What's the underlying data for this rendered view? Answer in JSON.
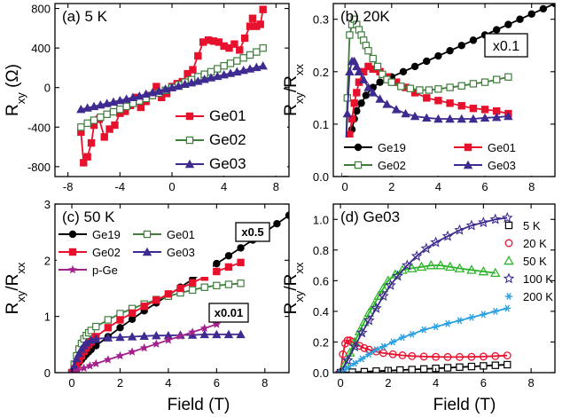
{
  "figure": {
    "xlabel": "Field (T)",
    "xlabel_left": "Field (T)",
    "xlabel_right": "Field (T)"
  },
  "chart_data": [
    {
      "id": "a",
      "type": "line",
      "title": "(a) 5 K",
      "ylabel_main": "R",
      "ylabel_sub": "xy",
      "ylabel_unit": " (Ω)",
      "xlim": [
        -9,
        9
      ],
      "ylim": [
        -900,
        850
      ],
      "xticks": [
        -8,
        -4,
        0,
        4,
        8
      ],
      "yticks": [
        -800,
        -400,
        0,
        400,
        800
      ],
      "legend_position": "bottom-right",
      "series": [
        {
          "name": "Ge01",
          "color": "#e8112d",
          "marker": "square-filled",
          "x": [
            -7,
            -6.8,
            -6.5,
            -6.2,
            -6,
            -5.6,
            -5.2,
            -4.8,
            -4.4,
            -4,
            -3.6,
            -3.2,
            -2.8,
            -2.4,
            -2,
            -1.6,
            -1.2,
            -0.8,
            -0.4,
            0,
            0.4,
            0.8,
            1.2,
            1.6,
            2,
            2.4,
            2.8,
            3.2,
            3.6,
            4,
            4.4,
            4.8,
            5.2,
            5.6,
            6,
            6.2,
            6.5,
            6.8,
            7
          ],
          "y": [
            -450,
            -760,
            -700,
            -560,
            -380,
            -320,
            -500,
            -420,
            -380,
            -260,
            -240,
            -180,
            -100,
            -200,
            -140,
            -80,
            10,
            -100,
            -60,
            10,
            40,
            60,
            140,
            180,
            320,
            460,
            480,
            470,
            460,
            420,
            400,
            440,
            380,
            500,
            620,
            700,
            620,
            640,
            790
          ]
        },
        {
          "name": "Ge02",
          "color": "#3e7d3b",
          "marker": "square-open",
          "x": [
            -7,
            -6.5,
            -6,
            -5.5,
            -5,
            -4.5,
            -4,
            -3.5,
            -3,
            -2.5,
            -2,
            -1.5,
            -1,
            -0.5,
            0,
            0.5,
            1,
            1.5,
            2,
            2.5,
            3,
            3.5,
            4,
            4.5,
            5,
            5.5,
            6,
            6.5,
            7
          ],
          "y": [
            -400,
            -360,
            -330,
            -300,
            -270,
            -245,
            -220,
            -190,
            -160,
            -135,
            -110,
            -80,
            -55,
            -28,
            0,
            28,
            55,
            80,
            110,
            135,
            160,
            190,
            220,
            245,
            270,
            300,
            330,
            360,
            400
          ]
        },
        {
          "name": "Ge03",
          "color": "#3f2a8f",
          "marker": "triangle-filled",
          "x": [
            -7,
            -6.5,
            -6,
            -5.5,
            -5,
            -4.5,
            -4,
            -3.5,
            -3,
            -2.5,
            -2,
            -1.5,
            -1,
            -0.5,
            0,
            0.5,
            1,
            1.5,
            2,
            2.5,
            3,
            3.5,
            4,
            4.5,
            5,
            5.5,
            6,
            6.5,
            7
          ],
          "y": [
            -220,
            -205,
            -190,
            -175,
            -160,
            -145,
            -130,
            -115,
            -100,
            -85,
            -65,
            -50,
            -35,
            -15,
            0,
            15,
            35,
            50,
            65,
            85,
            100,
            115,
            130,
            145,
            160,
            175,
            190,
            205,
            220
          ]
        }
      ]
    },
    {
      "id": "b",
      "type": "line",
      "title": "(b) 20K",
      "ylabel_main": "R",
      "ylabel_sub": "xy",
      "ylabel_mid": "/R",
      "ylabel_sub2": "xx",
      "xlim": [
        -0.5,
        9
      ],
      "ylim": [
        0,
        0.33
      ],
      "xticks": [
        0,
        2,
        4,
        6,
        8
      ],
      "yticks": [
        0.0,
        0.1,
        0.2,
        0.3
      ],
      "ytick_labels": [
        "0.0",
        "0.1",
        "0.2",
        "0.3"
      ],
      "annotation": "x0.1",
      "legend_position": "bottom",
      "series": [
        {
          "name": "Ge19",
          "color": "#000000",
          "marker": "circle-filled",
          "x": [
            0,
            0.1,
            0.2,
            0.3,
            0.4,
            0.5,
            0.7,
            0.9,
            1.2,
            1.5,
            2,
            2.5,
            3,
            3.5,
            4,
            4.5,
            5,
            5.5,
            6,
            6.5,
            7,
            7.5,
            8,
            8.5,
            9
          ],
          "y": [
            0,
            0.04,
            0.07,
            0.09,
            0.11,
            0.125,
            0.14,
            0.155,
            0.17,
            0.18,
            0.19,
            0.2,
            0.21,
            0.22,
            0.23,
            0.24,
            0.25,
            0.26,
            0.27,
            0.28,
            0.29,
            0.3,
            0.31,
            0.32,
            0.33
          ]
        },
        {
          "name": "Ge01",
          "color": "#e8112d",
          "marker": "square-filled",
          "x": [
            0,
            0.1,
            0.2,
            0.3,
            0.4,
            0.5,
            0.6,
            0.8,
            1,
            1.2,
            1.5,
            1.8,
            2.2,
            2.6,
            3,
            3.5,
            4,
            4.5,
            5,
            5.5,
            6,
            6.5,
            7
          ],
          "y": [
            0,
            0.04,
            0.08,
            0.11,
            0.14,
            0.16,
            0.18,
            0.2,
            0.21,
            0.205,
            0.2,
            0.19,
            0.18,
            0.17,
            0.16,
            0.15,
            0.145,
            0.14,
            0.135,
            0.13,
            0.128,
            0.125,
            0.12
          ]
        },
        {
          "name": "Ge02",
          "color": "#3e7d3b",
          "marker": "square-open",
          "x": [
            0,
            0.1,
            0.2,
            0.3,
            0.4,
            0.5,
            0.6,
            0.7,
            0.8,
            0.9,
            1,
            1.2,
            1.4,
            1.6,
            1.8,
            2,
            2.4,
            2.8,
            3.2,
            3.6,
            4,
            4.5,
            5,
            5.5,
            6,
            6.5,
            7
          ],
          "y": [
            0,
            0.15,
            0.27,
            0.29,
            0.3,
            0.29,
            0.28,
            0.27,
            0.26,
            0.25,
            0.24,
            0.225,
            0.21,
            0.195,
            0.185,
            0.18,
            0.172,
            0.168,
            0.165,
            0.165,
            0.167,
            0.17,
            0.173,
            0.177,
            0.18,
            0.185,
            0.19
          ]
        },
        {
          "name": "Ge03",
          "color": "#3f2a8f",
          "marker": "triangle-filled",
          "x": [
            0,
            0.1,
            0.2,
            0.3,
            0.4,
            0.5,
            0.6,
            0.8,
            1,
            1.2,
            1.5,
            1.8,
            2.2,
            2.6,
            3,
            3.5,
            4,
            4.5,
            5,
            5.5,
            6,
            6.5,
            7
          ],
          "y": [
            0,
            0.12,
            0.2,
            0.22,
            0.22,
            0.21,
            0.2,
            0.185,
            0.17,
            0.16,
            0.148,
            0.138,
            0.128,
            0.12,
            0.115,
            0.112,
            0.11,
            0.11,
            0.11,
            0.11,
            0.112,
            0.113,
            0.115
          ]
        }
      ]
    },
    {
      "id": "c",
      "type": "line",
      "title": "(c) 50 K",
      "ylabel_main": "R",
      "ylabel_sub": "xy",
      "ylabel_mid": "/R",
      "ylabel_sub2": "xx",
      "xlim": [
        -0.7,
        9
      ],
      "ylim": [
        0,
        3
      ],
      "xticks": [
        0,
        2,
        4,
        6,
        8
      ],
      "yticks": [
        0,
        1,
        2,
        3
      ],
      "annotation_top": "x0.5",
      "annotation_bottom": "x0.01",
      "legend_position": "top-left",
      "series": [
        {
          "name": "Ge19",
          "color": "#000000",
          "marker": "circle-filled",
          "x": [
            0,
            0.1,
            0.2,
            0.3,
            0.4,
            0.5,
            0.6,
            0.7,
            0.8,
            1,
            1.5,
            2,
            2.5,
            3,
            3.5,
            4,
            4.5,
            5,
            5.5,
            6,
            6.5,
            7,
            7.5,
            8,
            8.5,
            9
          ],
          "y": [
            0,
            0.05,
            0.12,
            0.18,
            0.23,
            0.28,
            0.33,
            0.37,
            0.41,
            0.48,
            0.64,
            0.8,
            0.95,
            1.1,
            1.24,
            1.38,
            1.52,
            1.66,
            1.8,
            1.94,
            2.08,
            2.22,
            2.36,
            2.5,
            2.65,
            2.8
          ]
        },
        {
          "name": "Ge01",
          "color": "#3e7d3b",
          "marker": "square-open",
          "x": [
            0,
            0.1,
            0.2,
            0.3,
            0.4,
            0.5,
            0.6,
            0.7,
            0.8,
            1,
            1.5,
            2,
            2.5,
            3,
            3.5,
            4,
            4.5,
            5,
            5.5,
            6,
            6.5,
            7
          ],
          "y": [
            0,
            0.15,
            0.3,
            0.42,
            0.52,
            0.6,
            0.66,
            0.71,
            0.75,
            0.82,
            0.94,
            1.05,
            1.14,
            1.22,
            1.3,
            1.36,
            1.42,
            1.47,
            1.52,
            1.55,
            1.57,
            1.59
          ]
        },
        {
          "name": "Ge02",
          "color": "#e8112d",
          "marker": "square-filled",
          "x": [
            0,
            0.1,
            0.2,
            0.3,
            0.4,
            0.5,
            0.6,
            0.7,
            0.8,
            1,
            1.5,
            2,
            2.5,
            3,
            3.5,
            4,
            4.5,
            5,
            5.5,
            6,
            6.5,
            7
          ],
          "y": [
            0,
            0.06,
            0.14,
            0.22,
            0.3,
            0.38,
            0.44,
            0.5,
            0.55,
            0.64,
            0.8,
            0.94,
            1.06,
            1.18,
            1.29,
            1.4,
            1.5,
            1.6,
            1.7,
            1.8,
            1.88,
            1.96
          ]
        },
        {
          "name": "Ge03",
          "color": "#3f2a8f",
          "marker": "triangle-filled",
          "x": [
            0,
            0.1,
            0.2,
            0.3,
            0.4,
            0.5,
            0.6,
            0.8,
            1,
            1.5,
            2,
            2.5,
            3,
            3.5,
            4,
            4.5,
            5,
            5.5,
            6,
            6.5,
            7
          ],
          "y": [
            0,
            0.12,
            0.25,
            0.34,
            0.42,
            0.48,
            0.53,
            0.58,
            0.6,
            0.62,
            0.63,
            0.64,
            0.65,
            0.66,
            0.66,
            0.67,
            0.67,
            0.68,
            0.68,
            0.68,
            0.68
          ]
        },
        {
          "name": "p-Ge",
          "color": "#a3228d",
          "marker": "star",
          "x": [
            0,
            0.25,
            0.5,
            0.75,
            1,
            1.5,
            2,
            2.5,
            3,
            3.5,
            4,
            4.5,
            5,
            5.5,
            6
          ],
          "y": [
            0,
            0.04,
            0.08,
            0.12,
            0.16,
            0.23,
            0.3,
            0.37,
            0.44,
            0.51,
            0.58,
            0.65,
            0.72,
            0.79,
            0.86
          ]
        }
      ]
    },
    {
      "id": "d",
      "type": "line",
      "title": "(d) Ge03",
      "ylabel_main": "R",
      "ylabel_sub": "xy",
      "ylabel_mid": "/R",
      "ylabel_sub2": "xx",
      "xlim": [
        -0.3,
        9
      ],
      "ylim": [
        0,
        1.1
      ],
      "xticks": [
        0,
        2,
        4,
        6,
        8
      ],
      "yticks": [
        0.0,
        0.2,
        0.4,
        0.6,
        0.8,
        1.0
      ],
      "ytick_labels": [
        "0.0",
        "0.2",
        "0.4",
        "0.6",
        "0.8",
        "1.0"
      ],
      "legend_position": "right",
      "series": [
        {
          "name": "5 K",
          "color": "#000000",
          "marker": "square-open",
          "x": [
            0,
            0.5,
            1,
            1.5,
            2,
            2.5,
            3,
            3.5,
            4,
            4.5,
            5,
            5.5,
            6,
            6.5,
            7
          ],
          "y": [
            0,
            0.003,
            0.006,
            0.01,
            0.013,
            0.017,
            0.02,
            0.024,
            0.028,
            0.032,
            0.036,
            0.04,
            0.044,
            0.048,
            0.052
          ]
        },
        {
          "name": "20 K",
          "color": "#e8112d",
          "marker": "circle-open",
          "x": [
            0,
            0.1,
            0.2,
            0.3,
            0.4,
            0.5,
            0.6,
            0.8,
            1,
            1.2,
            1.5,
            1.8,
            2.2,
            2.6,
            3,
            3.5,
            4,
            4.5,
            5,
            5.5,
            6,
            6.5,
            7
          ],
          "y": [
            0,
            0.12,
            0.19,
            0.21,
            0.21,
            0.2,
            0.19,
            0.175,
            0.16,
            0.15,
            0.138,
            0.128,
            0.12,
            0.113,
            0.108,
            0.105,
            0.103,
            0.102,
            0.102,
            0.103,
            0.105,
            0.108,
            0.112
          ]
        },
        {
          "name": "50 K",
          "color": "#2fb52c",
          "marker": "triangle-open",
          "x": [
            0,
            0.2,
            0.4,
            0.6,
            0.8,
            1,
            1.2,
            1.4,
            1.6,
            1.8,
            2,
            2.3,
            2.6,
            3,
            3.4,
            3.8,
            4.2,
            4.6,
            5,
            5.5,
            6,
            6.5
          ],
          "y": [
            0,
            0.06,
            0.13,
            0.2,
            0.27,
            0.33,
            0.39,
            0.44,
            0.5,
            0.55,
            0.6,
            0.64,
            0.67,
            0.68,
            0.69,
            0.7,
            0.7,
            0.69,
            0.68,
            0.67,
            0.66,
            0.65
          ]
        },
        {
          "name": "100 K",
          "color": "#3f2a8f",
          "marker": "star-open",
          "x": [
            0,
            0.3,
            0.6,
            0.9,
            1.2,
            1.5,
            1.8,
            2.1,
            2.4,
            2.8,
            3.2,
            3.6,
            4,
            4.5,
            5,
            5.5,
            6,
            6.5,
            7
          ],
          "y": [
            0,
            0.08,
            0.17,
            0.26,
            0.34,
            0.42,
            0.5,
            0.57,
            0.63,
            0.7,
            0.76,
            0.81,
            0.85,
            0.89,
            0.93,
            0.96,
            0.98,
            1.0,
            1.01
          ]
        },
        {
          "name": "200 K",
          "color": "#2aa0e0",
          "marker": "asterisk",
          "x": [
            0,
            0.3,
            0.6,
            0.9,
            1.2,
            1.5,
            1.8,
            2.2,
            2.6,
            3,
            3.5,
            4,
            4.5,
            5,
            5.5,
            6,
            6.5,
            7
          ],
          "y": [
            0,
            0.03,
            0.06,
            0.09,
            0.12,
            0.15,
            0.17,
            0.2,
            0.23,
            0.25,
            0.28,
            0.3,
            0.32,
            0.34,
            0.36,
            0.38,
            0.4,
            0.42
          ]
        }
      ]
    }
  ]
}
